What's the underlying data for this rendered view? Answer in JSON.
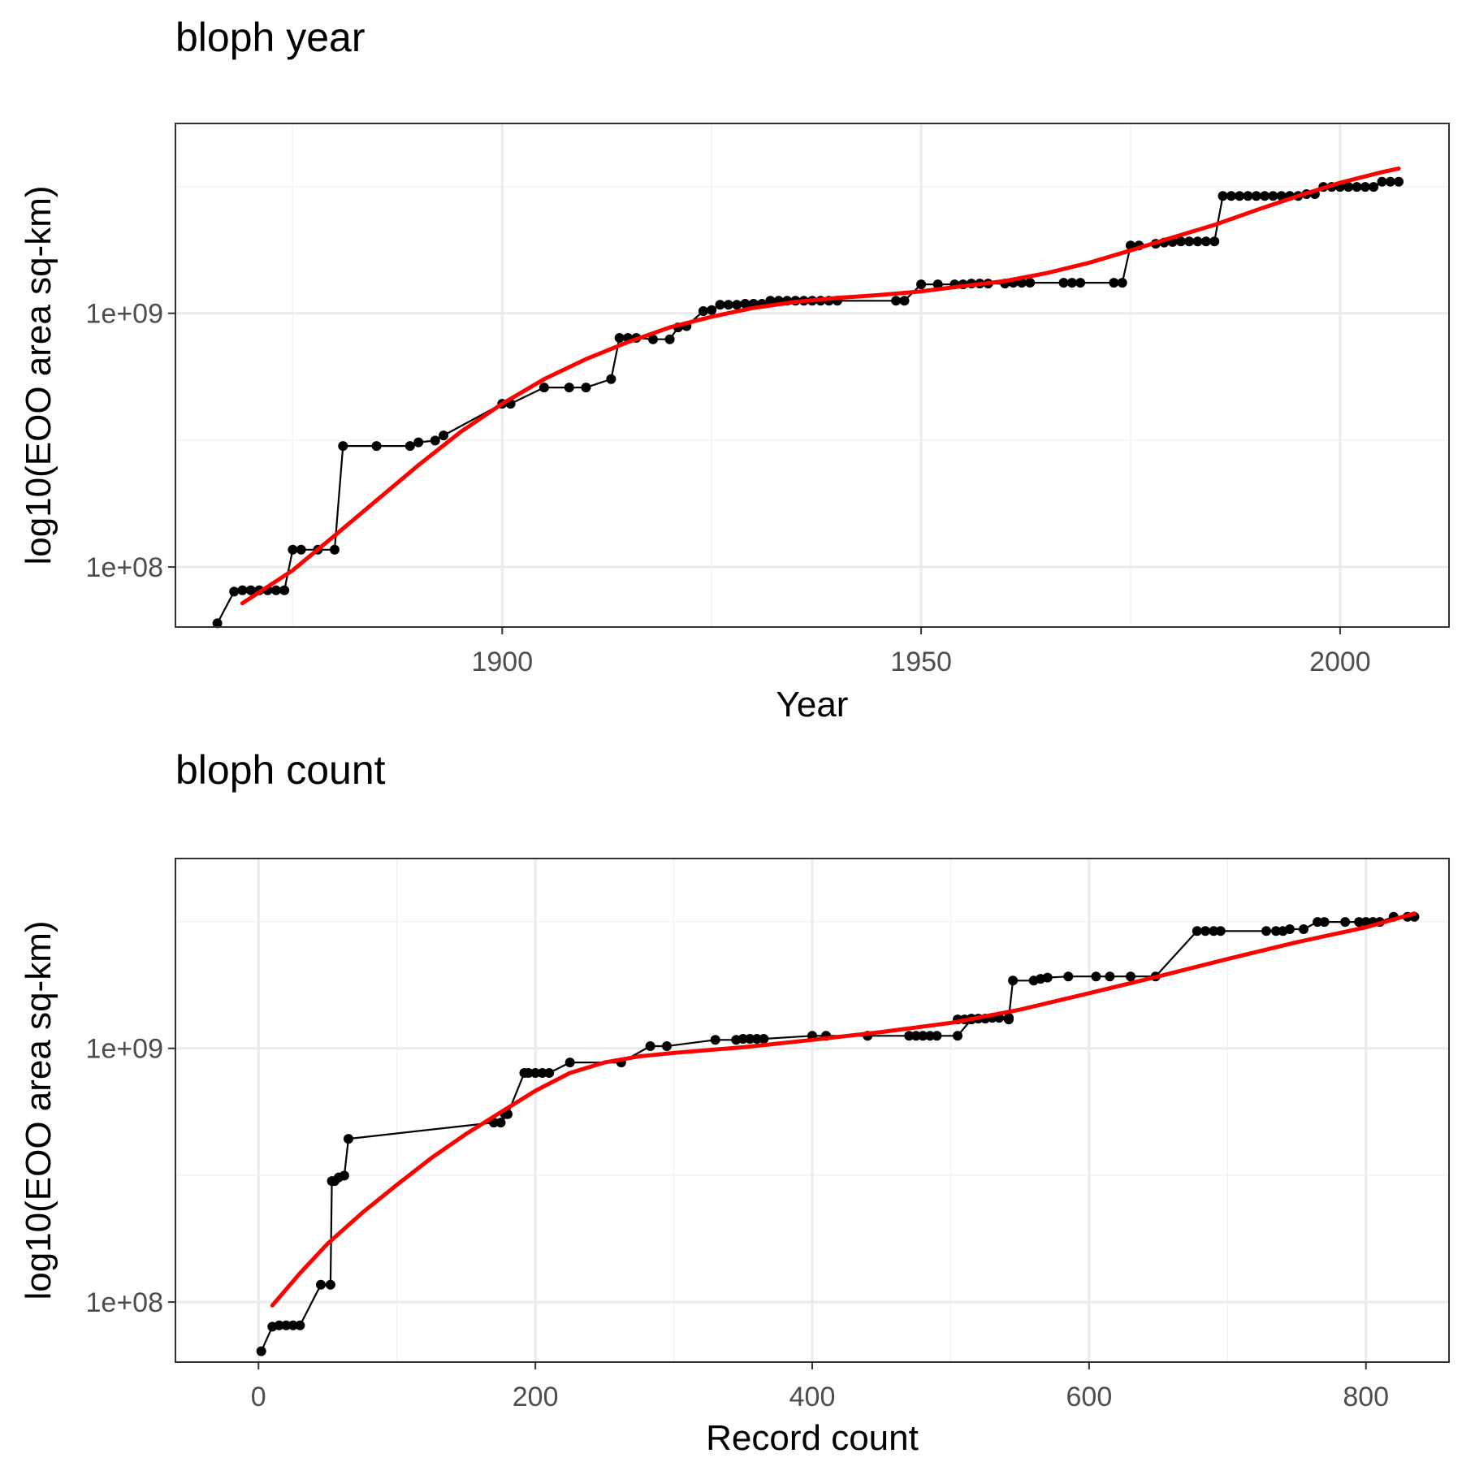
{
  "chart_data": [
    {
      "type": "line",
      "title": "bloph year",
      "xlabel": "Year",
      "ylabel": "log10(EOO area sq-km)",
      "y_scale": "log10",
      "xlim": [
        1861,
        2013
      ],
      "ylim": [
        58000000,
        5600000000
      ],
      "x_ticks": [
        1900,
        1950,
        2000
      ],
      "x_minor_ticks": [
        1875,
        1925,
        1975
      ],
      "y_ticks": [
        {
          "value": 100000000,
          "label": "1e+08"
        },
        {
          "value": 1000000000,
          "label": "1e+09"
        }
      ],
      "y_minor_ticks": [
        316000000,
        3160000000
      ],
      "grid": true,
      "legend": "none",
      "colors": {
        "observed": "#000000",
        "smooth": "#ff0000"
      },
      "series": [
        {
          "kind": "observed",
          "x": [
            1866,
            1868,
            1869,
            1870,
            1871,
            1872,
            1873,
            1874,
            1875,
            1876,
            1878,
            1880,
            1881,
            1885,
            1889,
            1890,
            1892,
            1893,
            1900,
            1901,
            1905,
            1908,
            1910,
            1913,
            1914,
            1915,
            1916,
            1918,
            1920,
            1921,
            1922,
            1924,
            1925,
            1926,
            1927,
            1928,
            1929,
            1930,
            1931,
            1932,
            1933,
            1934,
            1935,
            1936,
            1937,
            1938,
            1939,
            1940,
            1947,
            1948,
            1950,
            1952,
            1954,
            1955,
            1956,
            1957,
            1958,
            1960,
            1961,
            1962,
            1963,
            1967,
            1968,
            1969,
            1973,
            1974,
            1975,
            1976,
            1978,
            1979,
            1980,
            1981,
            1982,
            1983,
            1984,
            1985,
            1986,
            1987,
            1988,
            1989,
            1990,
            1991,
            1992,
            1993,
            1994,
            1995,
            1996,
            1997,
            1998,
            1999,
            2000,
            2001,
            2002,
            2003,
            2004,
            2005,
            2006,
            2007
          ],
          "y": [
            60000000,
            80000000,
            81000000,
            81000000,
            81000000,
            81000000,
            81000000,
            81000000,
            117000000,
            117000000,
            117000000,
            117000000,
            300000000,
            300000000,
            300000000,
            310000000,
            315000000,
            330000000,
            440000000,
            440000000,
            510000000,
            510000000,
            510000000,
            550000000,
            800000000,
            800000000,
            800000000,
            790000000,
            790000000,
            880000000,
            890000000,
            1020000000,
            1030000000,
            1080000000,
            1080000000,
            1080000000,
            1090000000,
            1090000000,
            1090000000,
            1120000000,
            1120000000,
            1120000000,
            1120000000,
            1120000000,
            1120000000,
            1120000000,
            1120000000,
            1120000000,
            1120000000,
            1120000000,
            1300000000,
            1300000000,
            1300000000,
            1300000000,
            1310000000,
            1310000000,
            1310000000,
            1310000000,
            1320000000,
            1320000000,
            1320000000,
            1320000000,
            1320000000,
            1320000000,
            1320000000,
            1320000000,
            1850000000,
            1850000000,
            1880000000,
            1900000000,
            1910000000,
            1920000000,
            1920000000,
            1920000000,
            1920000000,
            1920000000,
            2900000000,
            2900000000,
            2900000000,
            2900000000,
            2900000000,
            2900000000,
            2900000000,
            2900000000,
            2900000000,
            2900000000,
            2950000000,
            2950000000,
            3150000000,
            3150000000,
            3150000000,
            3150000000,
            3150000000,
            3150000000,
            3150000000,
            3300000000,
            3300000000,
            3300000000
          ]
        },
        {
          "kind": "smooth",
          "x": [
            1869,
            1875,
            1880,
            1885,
            1890,
            1895,
            1900,
            1905,
            1910,
            1915,
            1920,
            1925,
            1930,
            1935,
            1940,
            1945,
            1950,
            1955,
            1960,
            1965,
            1970,
            1975,
            1980,
            1985,
            1990,
            1995,
            2000,
            2005,
            2007
          ],
          "y": [
            72000000,
            97000000,
            133000000,
            183000000,
            252000000,
            340000000,
            440000000,
            550000000,
            660000000,
            770000000,
            880000000,
            970000000,
            1050000000,
            1110000000,
            1150000000,
            1180000000,
            1220000000,
            1280000000,
            1340000000,
            1440000000,
            1580000000,
            1770000000,
            1990000000,
            2230000000,
            2550000000,
            2900000000,
            3270000000,
            3600000000,
            3720000000
          ]
        }
      ]
    },
    {
      "type": "line",
      "title": "bloph count",
      "xlabel": "Record count",
      "ylabel": "log10(EOO area sq-km)",
      "y_scale": "log10",
      "xlim": [
        -60,
        860
      ],
      "ylim": [
        58000000,
        5600000000
      ],
      "x_ticks": [
        0,
        200,
        400,
        600,
        800
      ],
      "x_minor_ticks": [
        100,
        300,
        500,
        700
      ],
      "y_ticks": [
        {
          "value": 100000000,
          "label": "1e+08"
        },
        {
          "value": 1000000000,
          "label": "1e+09"
        }
      ],
      "y_minor_ticks": [
        316000000,
        3160000000
      ],
      "grid": true,
      "legend": "none",
      "colors": {
        "observed": "#000000",
        "smooth": "#ff0000"
      },
      "series": [
        {
          "kind": "observed",
          "x": [
            2,
            10,
            15,
            20,
            25,
            30,
            45,
            52,
            53,
            55,
            58,
            62,
            65,
            170,
            175,
            178,
            180,
            192,
            195,
            200,
            205,
            210,
            225,
            262,
            283,
            295,
            330,
            345,
            350,
            355,
            360,
            365,
            400,
            410,
            440,
            470,
            475,
            480,
            485,
            490,
            505,
            515,
            542,
            505,
            510,
            515,
            520,
            525,
            530,
            535,
            542,
            545,
            560,
            565,
            570,
            585,
            605,
            615,
            630,
            648,
            678,
            684,
            690,
            695,
            728,
            735,
            740,
            745,
            755,
            765,
            770,
            785,
            795,
            800,
            805,
            810,
            820,
            830,
            835
          ],
          "y": [
            64000000,
            80000000,
            81000000,
            81000000,
            81000000,
            81000000,
            117000000,
            117000000,
            300000000,
            300000000,
            310000000,
            315000000,
            440000000,
            510000000,
            510000000,
            550000000,
            550000000,
            800000000,
            800000000,
            800000000,
            800000000,
            800000000,
            880000000,
            880000000,
            1020000000,
            1020000000,
            1080000000,
            1080000000,
            1090000000,
            1090000000,
            1090000000,
            1090000000,
            1120000000,
            1120000000,
            1120000000,
            1120000000,
            1120000000,
            1120000000,
            1120000000,
            1120000000,
            1120000000,
            1300000000,
            1300000000,
            1300000000,
            1300000000,
            1310000000,
            1310000000,
            1310000000,
            1320000000,
            1320000000,
            1320000000,
            1850000000,
            1850000000,
            1880000000,
            1900000000,
            1920000000,
            1920000000,
            1920000000,
            1920000000,
            1920000000,
            2900000000,
            2900000000,
            2900000000,
            2900000000,
            2900000000,
            2900000000,
            2900000000,
            2950000000,
            2950000000,
            3150000000,
            3150000000,
            3150000000,
            3150000000,
            3150000000,
            3150000000,
            3150000000,
            3300000000,
            3300000000,
            3300000000
          ]
        },
        {
          "kind": "smooth",
          "x": [
            10,
            30,
            50,
            75,
            100,
            125,
            150,
            175,
            200,
            225,
            250,
            275,
            300,
            350,
            400,
            450,
            500,
            550,
            600,
            650,
            700,
            750,
            800,
            835
          ],
          "y": [
            97000000,
            130000000,
            170000000,
            225000000,
            290000000,
            370000000,
            460000000,
            560000000,
            680000000,
            800000000,
            880000000,
            930000000,
            960000000,
            1010000000,
            1080000000,
            1160000000,
            1260000000,
            1420000000,
            1650000000,
            1920000000,
            2250000000,
            2620000000,
            3000000000,
            3400000000
          ]
        }
      ]
    }
  ]
}
